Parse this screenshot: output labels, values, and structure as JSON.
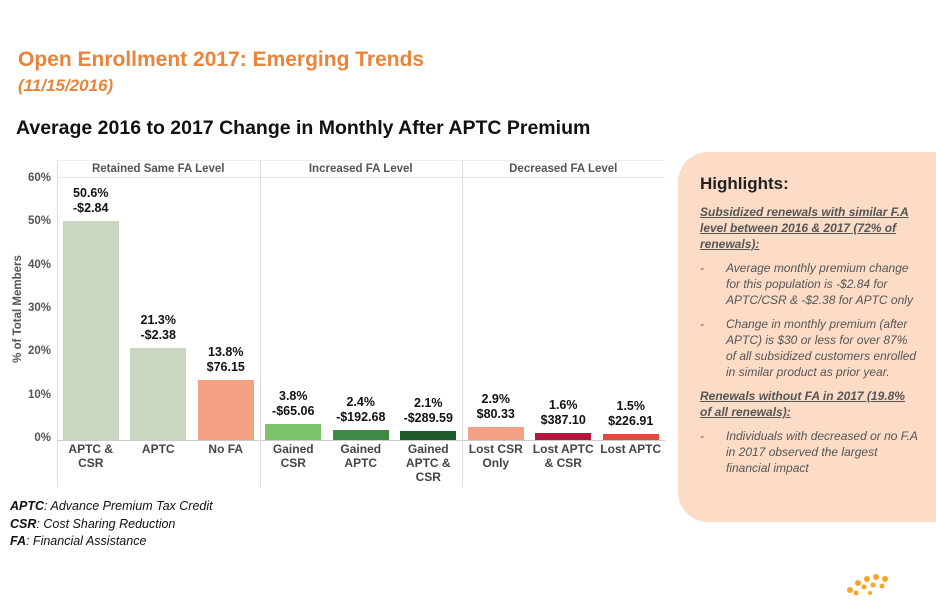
{
  "header": {
    "title": "Open Enrollment 2017: Emerging Trends",
    "subtitle": "(11/15/2016)",
    "heading": "Average 2016 to 2017 Change in Monthly After APTC Premium"
  },
  "chart_data": {
    "type": "bar",
    "ylabel": "% of Total Members",
    "groups": [
      {
        "name": "Retained Same FA Level",
        "count": 3
      },
      {
        "name": "Increased FA Level",
        "count": 3
      },
      {
        "name": "Decreased FA Level",
        "count": 3
      }
    ],
    "categories": [
      "APTC & CSR",
      "APTC",
      "No FA",
      "Gained CSR",
      "Gained APTC",
      "Gained APTC & CSR",
      "Lost CSR Only",
      "Lost APTC & CSR",
      "Lost APTC"
    ],
    "values": [
      50.6,
      21.3,
      13.8,
      3.8,
      2.4,
      2.1,
      2.9,
      1.6,
      1.5
    ],
    "value_labels": [
      "50.6%",
      "21.3%",
      "13.8%",
      "3.8%",
      "2.4%",
      "2.1%",
      "2.9%",
      "1.6%",
      "1.5%"
    ],
    "premium_change_labels": [
      "-$2.84",
      "-$2.38",
      "$76.15",
      "-$65.06",
      "-$192.68",
      "-$289.59",
      "$80.33",
      "$387.10",
      "$226.91"
    ],
    "colors": [
      "#c9d6c0",
      "#c9d6c0",
      "#f4a186",
      "#7cc36a",
      "#3c8a44",
      "#1e5c2c",
      "#f4a186",
      "#b3173a",
      "#e8473f"
    ],
    "ylim": [
      0,
      60
    ],
    "yticks": [
      {
        "value": 0,
        "label": "0%"
      },
      {
        "value": 10,
        "label": "10%"
      },
      {
        "value": 20,
        "label": "20%"
      },
      {
        "value": 30,
        "label": "30%"
      },
      {
        "value": 40,
        "label": "40%"
      },
      {
        "value": 50,
        "label": "50%"
      },
      {
        "value": 60,
        "label": "60%"
      }
    ],
    "grid": false
  },
  "highlights": {
    "title": "Highlights:",
    "sections": [
      {
        "heading": "Subsidized renewals with similar F.A level between 2016 & 2017 (72% of renewals):",
        "bullets": [
          "Average monthly premium change for this population is -$2.84 for APTC/CSR & -$2.38 for APTC only",
          "Change in monthly premium (after APTC) is $30 or less for over 87% of all subsidized customers enrolled in similar product as prior year."
        ]
      },
      {
        "heading": "Renewals without FA in 2017 (19.8% of all renewals):",
        "bullets": [
          "Individuals with decreased or no F.A in 2017 observed the largest financial impact"
        ]
      }
    ]
  },
  "footnotes": [
    {
      "term": "APTC",
      "definition": ": Advance Premium Tax Credit"
    },
    {
      "term": "CSR",
      "definition": ": Cost Sharing Reduction"
    },
    {
      "term": "FA",
      "definition": ": Financial Assistance"
    }
  ]
}
